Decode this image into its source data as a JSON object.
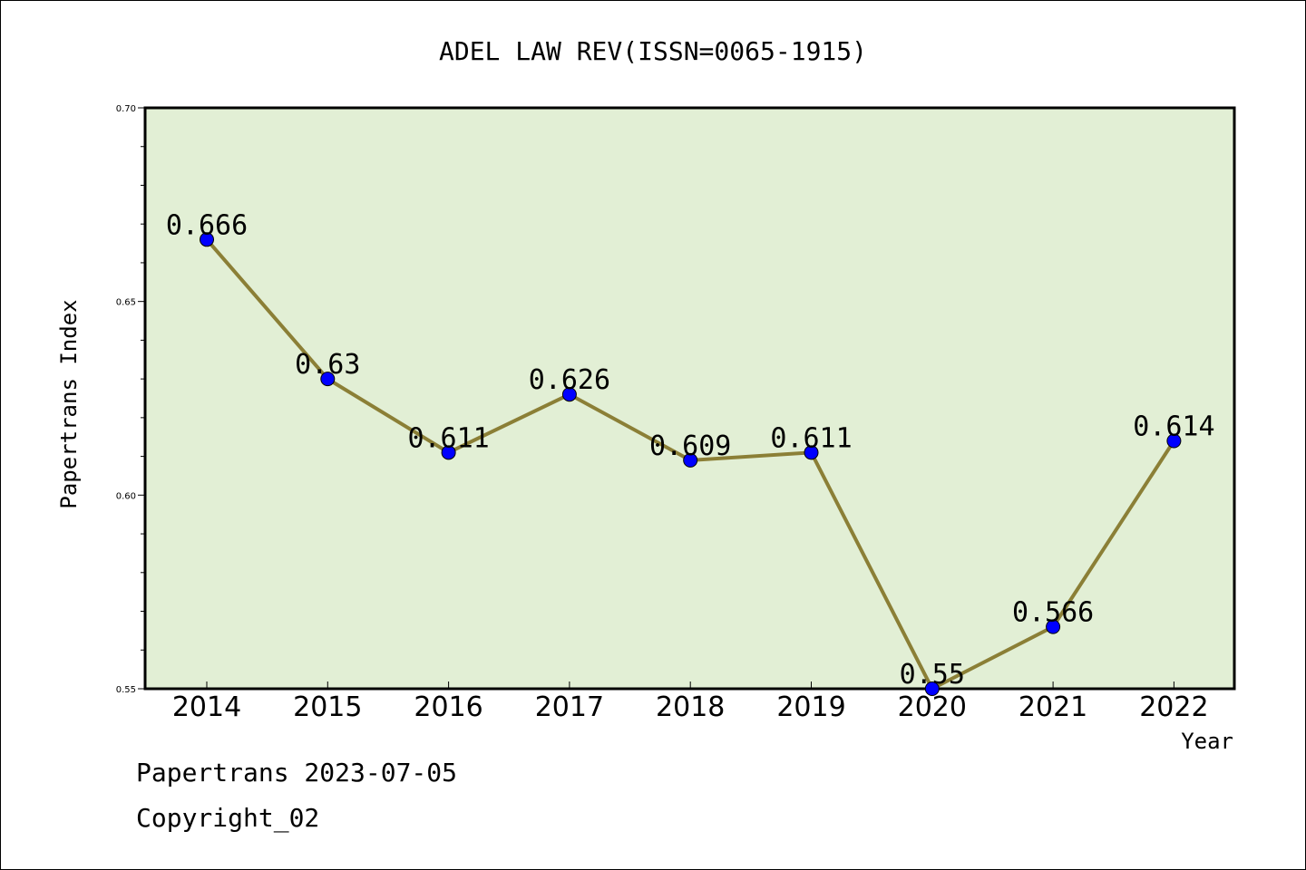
{
  "chart_data": {
    "type": "line",
    "title": "ADEL LAW REV(ISSN=0065-1915)",
    "xlabel": "Year",
    "ylabel": "Papertrans Index",
    "categories": [
      "2014",
      "2015",
      "2016",
      "2017",
      "2018",
      "2019",
      "2020",
      "2021",
      "2022"
    ],
    "series": [
      {
        "values": [
          0.666,
          0.63,
          0.611,
          0.626,
          0.609,
          0.611,
          0.55,
          0.566,
          0.614
        ]
      }
    ],
    "data_labels": [
      "0.666",
      "0.63",
      "0.611",
      "0.626",
      "0.609",
      "0.611",
      "0.55",
      "0.566",
      "0.614"
    ],
    "ylim": [
      0.55,
      0.7
    ],
    "yticks": [
      0.55,
      0.6,
      0.65,
      0.7
    ],
    "ytick_labels": [
      "0.55",
      "0.60",
      "0.65",
      "0.70"
    ],
    "grid": false,
    "colors": {
      "plot_background": "#e2efd5",
      "line": "#8b7f36",
      "marker": "#0000ff"
    }
  },
  "footer": {
    "line1": "Papertrans 2023-07-05",
    "line2": "Copyright_02"
  }
}
